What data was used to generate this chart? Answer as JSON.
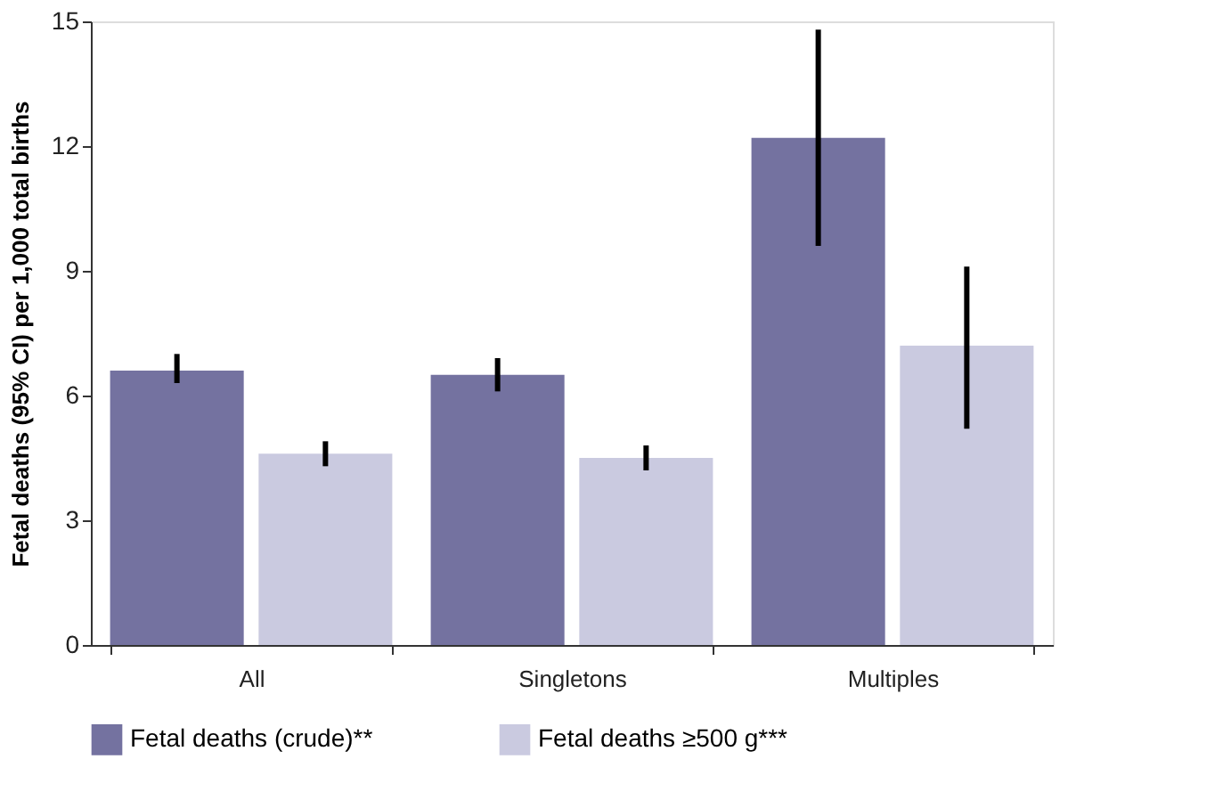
{
  "chart_data": {
    "type": "bar",
    "ylabel": "Fetal deaths (95% CI) per 1,000 total births",
    "categories": [
      "All",
      "Singletons",
      "Multiples"
    ],
    "series": [
      {
        "name": "Fetal deaths (crude)**",
        "color": "#7472a0",
        "values": [
          6.6,
          6.5,
          12.2
        ],
        "errors": [
          [
            6.3,
            7.0
          ],
          [
            6.1,
            6.9
          ],
          [
            9.6,
            14.8
          ]
        ]
      },
      {
        "name": "Fetal deaths ≥500 g***",
        "color": "#cacae0",
        "values": [
          4.6,
          4.5,
          7.2
        ],
        "errors": [
          [
            4.3,
            4.9
          ],
          [
            4.2,
            4.8
          ],
          [
            5.2,
            9.1
          ]
        ]
      }
    ],
    "ylim": [
      0,
      15
    ],
    "yticks": [
      0,
      3,
      6,
      9,
      12,
      15
    ],
    "grid": false,
    "legend": "bottom"
  }
}
